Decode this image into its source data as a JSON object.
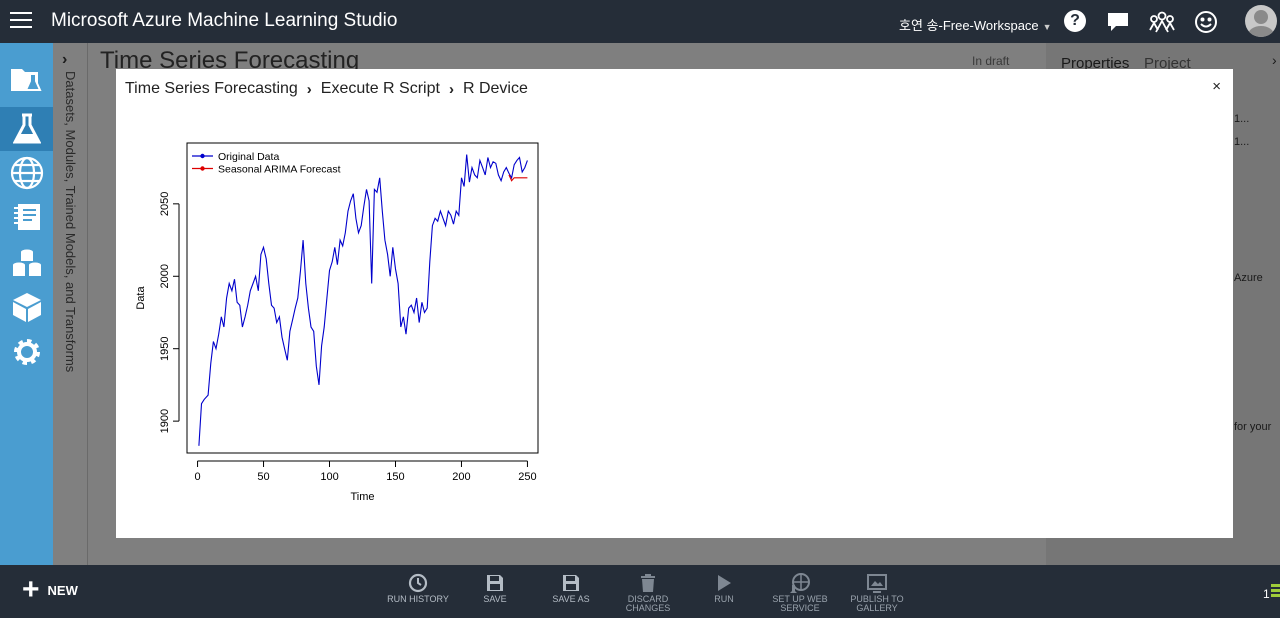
{
  "topbar": {
    "title": "Microsoft Azure Machine Learning Studio",
    "workspace": "호연 송-Free-Workspace",
    "help_symbol": "?"
  },
  "icons": {
    "menu": "hamburger-menu-icon",
    "help": "help-icon",
    "chat": "chat-icon",
    "community": "people-icon",
    "feedback": "smile-icon",
    "user": "avatar-icon"
  },
  "rail": {
    "items": [
      "projects-icon",
      "experiments-icon",
      "web-services-icon",
      "notebooks-icon",
      "datasets-icon",
      "trained-models-icon",
      "settings-icon"
    ],
    "active_index": 1
  },
  "palette": {
    "label": "Datasets, Modules, Trained Models, and Transforms"
  },
  "experiment": {
    "title": "Time Series Forecasting",
    "status": "In draft"
  },
  "properties_panel": {
    "tabs": [
      "Properties",
      "Project"
    ],
    "fragments": [
      "1...",
      "1...",
      "Azure",
      "for your"
    ]
  },
  "modal": {
    "breadcrumb": [
      "Time Series Forecasting",
      "Execute R Script",
      "R Device"
    ],
    "close_symbol": "×"
  },
  "commands": {
    "new": "NEW",
    "items": [
      {
        "line1": "RUN HISTORY",
        "line2": ""
      },
      {
        "line1": "SAVE",
        "line2": ""
      },
      {
        "line1": "SAVE AS",
        "line2": ""
      },
      {
        "line1": "DISCARD",
        "line2": "CHANGES"
      },
      {
        "line1": "RUN",
        "line2": ""
      },
      {
        "line1": "SET UP WEB",
        "line2": "SERVICE"
      },
      {
        "line1": "PUBLISH TO",
        "line2": "GALLERY"
      }
    ],
    "right_count": "1"
  },
  "colors": {
    "topbar": "#252d38",
    "rail": "#4a9dd0",
    "original_series": "#0000cc",
    "forecast_series": "#dd0000"
  },
  "chart_data": {
    "type": "line",
    "title": "",
    "xlabel": "Time",
    "ylabel": "Data",
    "xlim": [
      -8,
      258
    ],
    "ylim": [
      1878,
      2092
    ],
    "xticks": [
      0,
      50,
      100,
      150,
      200,
      250
    ],
    "yticks": [
      1900,
      1950,
      2000,
      2050
    ],
    "legend": {
      "position": "top-left",
      "entries": [
        "Original Data",
        "Seasonal ARIMA Forecast"
      ]
    },
    "series": [
      {
        "name": "Original Data",
        "color": "#0000cc",
        "x": [
          1,
          3,
          5,
          8,
          10,
          12,
          14,
          16,
          18,
          20,
          22,
          24,
          26,
          28,
          30,
          32,
          34,
          36,
          38,
          40,
          42,
          44,
          46,
          48,
          50,
          52,
          54,
          56,
          58,
          60,
          62,
          64,
          66,
          68,
          70,
          72,
          74,
          76,
          78,
          80,
          82,
          84,
          86,
          88,
          90,
          92,
          94,
          96,
          98,
          100,
          102,
          104,
          106,
          108,
          110,
          112,
          114,
          116,
          118,
          120,
          122,
          124,
          126,
          128,
          130,
          132,
          134,
          136,
          138,
          140,
          142,
          144,
          146,
          148,
          150,
          152,
          154,
          156,
          158,
          160,
          162,
          164,
          166,
          168,
          170,
          172,
          174,
          176,
          178,
          180,
          182,
          184,
          186,
          188,
          190,
          192,
          194,
          196,
          198,
          200,
          202,
          204,
          206,
          208,
          210,
          212,
          214,
          216,
          218,
          220,
          222,
          224,
          226,
          228,
          230,
          232,
          234,
          236,
          238,
          240,
          242,
          244,
          246,
          248,
          250
        ],
        "y": [
          1883,
          1912,
          1915,
          1918,
          1940,
          1955,
          1950,
          1960,
          1972,
          1965,
          1985,
          1995,
          1990,
          1998,
          1982,
          1980,
          1965,
          1972,
          1980,
          1990,
          1995,
          2000,
          1990,
          2015,
          2020,
          2012,
          1995,
          1980,
          1978,
          1968,
          1972,
          1958,
          1950,
          1942,
          1962,
          1970,
          1978,
          1985,
          2004,
          2025,
          1995,
          1978,
          1965,
          1962,
          1938,
          1925,
          1952,
          1965,
          1985,
          2004,
          2010,
          2020,
          2008,
          2025,
          2021,
          2030,
          2045,
          2052,
          2057,
          2040,
          2030,
          2035,
          2048,
          2060,
          2052,
          1995,
          2060,
          2058,
          2068,
          2045,
          2025,
          2015,
          2000,
          2020,
          2005,
          1995,
          1965,
          1972,
          1960,
          1978,
          1980,
          1975,
          1985,
          1968,
          1982,
          1975,
          1978,
          2010,
          2035,
          2040,
          2038,
          2045,
          2040,
          2035,
          2045,
          2042,
          2036,
          2045,
          2042,
          2068,
          2062,
          2084,
          2065,
          2075,
          2070,
          2068,
          2080,
          2075,
          2070,
          2082,
          2075,
          2079,
          2078,
          2070,
          2066,
          2072,
          2075,
          2071,
          2068,
          2077,
          2080,
          2082,
          2072,
          2075,
          2080
        ]
      },
      {
        "name": "Seasonal ARIMA Forecast",
        "color": "#dd0000",
        "x": [
          236,
          238,
          240,
          242,
          244,
          246,
          248,
          250
        ],
        "y": [
          2070,
          2066,
          2068,
          2068,
          2068,
          2068,
          2068,
          2068
        ]
      }
    ]
  }
}
